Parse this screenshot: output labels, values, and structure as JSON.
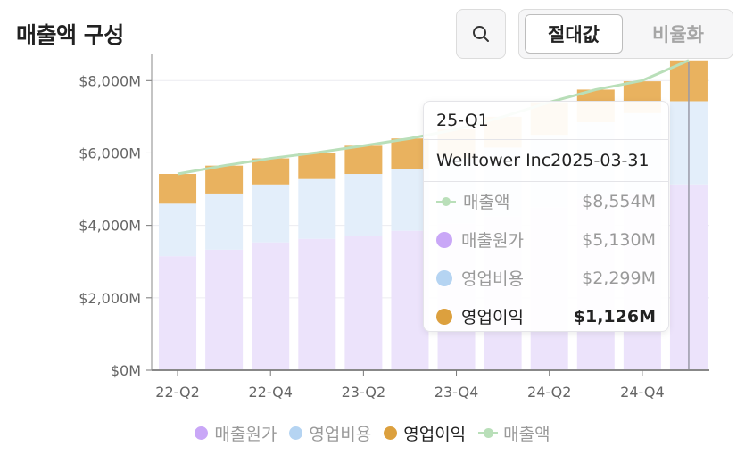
{
  "header": {
    "title": "매출액 구성",
    "search_icon": "search-icon",
    "toggle": {
      "selected": "절대값",
      "other": "비율화"
    }
  },
  "colors": {
    "cost_of_revenue": "#ece3fb",
    "operating_expense": "#e3eefa",
    "operating_income": "#e9b25f",
    "revenue_line": "#b9dfb9",
    "legend_cost": "#c9a7f7",
    "legend_opex": "#b5d4f2",
    "legend_income": "#dca03e",
    "legend_revenue": "#b9dfb9"
  },
  "chart_data": {
    "type": "bar",
    "stacked": true,
    "categories": [
      "22-Q2",
      "22-Q3",
      "22-Q4",
      "23-Q1",
      "23-Q2",
      "23-Q3",
      "23-Q4",
      "24-Q1",
      "24-Q2",
      "24-Q3",
      "24-Q4",
      "25-Q1"
    ],
    "x_tick_labels": [
      "22-Q2",
      "22-Q4",
      "23-Q2",
      "23-Q4",
      "24-Q2",
      "24-Q4"
    ],
    "y_tick_labels": [
      "$0M",
      "$2,000M",
      "$4,000M",
      "$6,000M",
      "$8,000M"
    ],
    "ylim": [
      0,
      8500
    ],
    "grid": true,
    "series": [
      {
        "name": "매출원가",
        "values": [
          3150,
          3330,
          3530,
          3630,
          3720,
          3850,
          4050,
          4250,
          4500,
          4750,
          4900,
          5130
        ]
      },
      {
        "name": "영업비용",
        "values": [
          1450,
          1550,
          1600,
          1650,
          1700,
          1700,
          1800,
          1900,
          2000,
          2100,
          2200,
          2299
        ]
      },
      {
        "name": "영업이익",
        "values": [
          820,
          770,
          720,
          730,
          780,
          850,
          800,
          850,
          900,
          900,
          880,
          1126
        ]
      },
      {
        "name": "매출액",
        "type": "line",
        "values": [
          5420,
          5650,
          5850,
          6010,
          6200,
          6400,
          6650,
          7000,
          7400,
          7750,
          8000,
          8554
        ]
      }
    ],
    "highlight_index": 11,
    "legend_position": "bottom",
    "legend": [
      "매출원가",
      "영업비용",
      "영업이익",
      "매출액"
    ]
  },
  "tooltip": {
    "period": "25-Q1",
    "entity": "Welltower Inc2025-03-31",
    "rows": [
      {
        "label": "매출액",
        "value": "$8,554M"
      },
      {
        "label": "매출원가",
        "value": "$5,130M"
      },
      {
        "label": "영업비용",
        "value": "$2,299M"
      },
      {
        "label": "영업이익",
        "value": "$1,126M"
      }
    ]
  }
}
